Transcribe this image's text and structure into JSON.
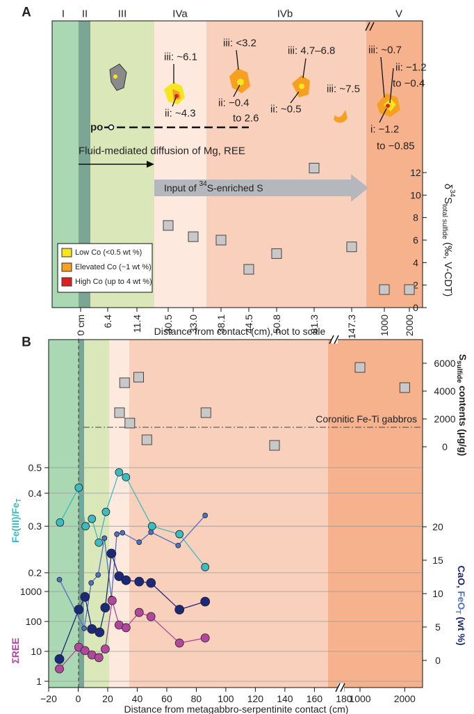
{
  "chart_data": [
    {
      "type": "scatter",
      "panel_label": "A",
      "zones": [
        "I",
        "II",
        "III",
        "IVa",
        "IVb",
        "V"
      ],
      "categories": [
        "0 cm",
        "6.4",
        "11.4",
        "30.5",
        "33.0",
        "38.1",
        "44.5",
        "50.8",
        "81.3",
        "147.3",
        "1000",
        "2000"
      ],
      "x_label": "Distance from contact (cm), not to scale",
      "series": [
        {
          "color": "#c8c8c8",
          "marker": "square",
          "values": [
            null,
            null,
            null,
            7.3,
            6.3,
            6.0,
            3.4,
            4.8,
            12.4,
            5.4,
            1.6,
            1.6
          ]
        }
      ],
      "ylim": [
        0,
        12
      ],
      "yticks": [
        0,
        2,
        4,
        6,
        8,
        10,
        12
      ],
      "y_label": [
        "δ",
        "34",
        "S",
        "total sulfide",
        " (‰, V-CDT)"
      ],
      "annotations": [
        "iii: ~6.1",
        "ii: ~4.3",
        "iii: <3.2",
        "ii: −0.4",
        "to 2.6",
        "iii: 4.7–6.8",
        "ii: ~0.5",
        "iii: ~7.5",
        "iii: ~0.7",
        "ii: −1.2",
        "to −0.4",
        "i: −1.2",
        "to −0.85"
      ],
      "po_label": "po",
      "diffusion_label": "Fluid-mediated diffusion of Mg, REE",
      "input_label": [
        "Input of ",
        "34",
        "S-enriched S"
      ],
      "legend": [
        {
          "name": "Low Co (<0.5 wt %)",
          "color": "#f7e51d"
        },
        {
          "name": "Elevated Co (~1 wt %)",
          "color": "#f5a020"
        },
        {
          "name": "High Co (up to 4 wt %)",
          "color": "#e02020"
        }
      ]
    },
    {
      "type": "line",
      "panel_label": "B",
      "x_label": "Distance from metagabbro-serpentinite contact (cm)",
      "x_segments": [
        {
          "xlim": [
            -20,
            181
          ],
          "xticks": [
            {
              "value": -20,
              "label": "−20"
            },
            0,
            20,
            40,
            60,
            80,
            100,
            120,
            140,
            160,
            180
          ]
        },
        {
          "xlim": [
            720,
            2400
          ],
          "xticks": [
            1000,
            2000
          ]
        }
      ],
      "axes": {
        "s": {
          "side": "right",
          "ylim": [
            0,
            6000
          ],
          "yticks": [
            0,
            2000,
            4000,
            6000
          ],
          "log": false,
          "grid": false,
          "label": [
            "S",
            "sulfide",
            " contents (μg/g)"
          ],
          "label_colors": [
            "#222222",
            "#222222",
            "#222222"
          ],
          "reference": {
            "label": "Coronitic Fe-Ti gabbros",
            "value": 1400
          }
        },
        "fe": {
          "side": "left",
          "ylim": [
            0.2,
            0.5
          ],
          "yticks": [
            0.2,
            0.3,
            0.4,
            0.5
          ],
          "log": true,
          "grid": true,
          "label": [
            "Fe(III)/Fe",
            "T"
          ],
          "label_colors": [
            "#3cbcc0",
            "#3cbcc0"
          ]
        },
        "ca": {
          "side": "right",
          "ylim": [
            0,
            20
          ],
          "yticks": [
            0,
            5,
            10,
            15,
            20
          ],
          "log": false,
          "grid": false,
          "label": [
            "CaO, ",
            "FeO",
            "T",
            " (wt %)"
          ],
          "label_colors": [
            "#1c2878",
            "#4c72c6",
            "#4c72c6",
            "#1c2878"
          ]
        },
        "ree": {
          "side": "left",
          "ylim": [
            1,
            1000
          ],
          "yticks": [
            1,
            10,
            100,
            1000
          ],
          "log": true,
          "grid": true,
          "label": [
            "ΣREE"
          ],
          "label_colors": [
            "#b2479e"
          ]
        }
      },
      "series": [
        {
          "axis": "s",
          "color": "#c8c8c8",
          "marker": "square",
          "line": false,
          "x": [
            31.4,
            41,
            28,
            35,
            46.5,
            86.5,
            133,
            1000,
            2000
          ],
          "values": [
            4600,
            5000,
            2450,
            1700,
            500,
            2450,
            100,
            5700,
            4250
          ]
        },
        {
          "axis": "fe",
          "color": "#3cbcc0",
          "marker": "circle",
          "line": true,
          "x": [
            -12.3,
            0.4,
            5,
            9.3,
            14,
            18.8,
            27.7,
            32.4,
            50,
            68.6,
            86
          ],
          "values": [
            0.31,
            0.42,
            0.3,
            0.32,
            0.26,
            0.34,
            0.48,
            0.46,
            0.3,
            0.28,
            0.21
          ]
        },
        {
          "axis": "ca",
          "color": "#4c72c6",
          "marker": "circle",
          "line": true,
          "x": [
            -12.7,
            4.1,
            8.8,
            13.5,
            17.8,
            22.5,
            26.2,
            30,
            41.3,
            49.3,
            67.7,
            86
          ],
          "values": [
            12.1,
            4.8,
            11.6,
            12.8,
            18.3,
            9.3,
            18.9,
            19.1,
            17.7,
            19.2,
            17.2,
            21.7
          ]
        },
        {
          "axis": "ca",
          "color": "#1c2878",
          "marker": "circle",
          "line": true,
          "x": [
            -12.7,
            0.4,
            4.6,
            9.3,
            14.5,
            18.3,
            22.5,
            27.7,
            32.4,
            41.3,
            49.3,
            68.6,
            86
          ],
          "values": [
            0.2,
            7.6,
            9.5,
            4.7,
            4.2,
            7.9,
            16,
            12.6,
            12,
            11.8,
            11.6,
            7.6,
            8.8
          ]
        },
        {
          "axis": "ree",
          "color": "#b2479e",
          "marker": "circle",
          "line": true,
          "x": [
            -12.7,
            0.4,
            4.6,
            9.3,
            14,
            18.3,
            23,
            27.7,
            32.4,
            41.3,
            49.3,
            68.6,
            86
          ],
          "values": [
            2.6,
            13.8,
            10.6,
            7.6,
            6.2,
            12,
            500,
            76,
            62,
            200,
            145,
            19,
            28
          ]
        }
      ]
    }
  ]
}
